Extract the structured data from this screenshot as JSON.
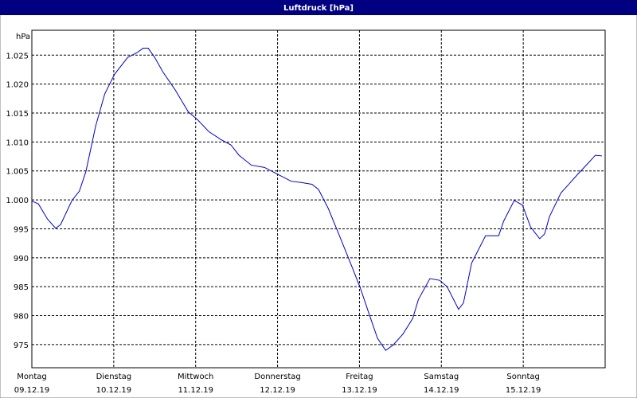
{
  "chart_data": {
    "type": "line",
    "title": "Luftdruck [hPa]",
    "y_unit": "hPa",
    "xticks": [
      {
        "value": 0,
        "label": "Montag"
      },
      {
        "value": 1,
        "label": "Dienstag"
      },
      {
        "value": 2,
        "label": "Mittwoch"
      },
      {
        "value": 3,
        "label": "Donnerstag"
      },
      {
        "value": 4,
        "label": "Freitag"
      },
      {
        "value": 5,
        "label": "Samstag"
      },
      {
        "value": 6,
        "label": "Sonntag"
      }
    ],
    "xtick_dates": [
      "09.12.19",
      "10.12.19",
      "11.12.19",
      "12.12.19",
      "13.12.19",
      "14.12.19",
      "15.12.19"
    ],
    "xlim": [
      0,
      7
    ],
    "ylim": [
      971,
      1029.3
    ],
    "yticks": [
      975,
      980,
      985,
      990,
      995,
      {
        "value": 1000,
        "label": "1.000"
      },
      {
        "value": 1005,
        "label": "1.005"
      },
      {
        "value": 1010,
        "label": "1.010"
      },
      {
        "value": 1015,
        "label": "1.015"
      },
      {
        "value": 1020,
        "label": "1.020"
      },
      {
        "value": 1025,
        "label": "1.025"
      }
    ],
    "grid": true,
    "x": [
      0,
      0.08,
      0.19,
      0.29,
      0.35,
      0.49,
      0.58,
      0.66,
      0.78,
      0.89,
      1.01,
      1.17,
      1.28,
      1.36,
      1.42,
      1.5,
      1.6,
      1.75,
      1.91,
      2.02,
      2.16,
      2.31,
      2.43,
      2.53,
      2.68,
      2.84,
      2.99,
      3.17,
      3.29,
      3.42,
      3.5,
      3.62,
      3.75,
      3.89,
      4.01,
      4.12,
      4.22,
      4.32,
      4.41,
      4.53,
      4.65,
      4.72,
      4.86,
      4.98,
      5.07,
      5.21,
      5.27,
      5.37,
      5.54,
      5.7,
      5.76,
      5.89,
      5.99,
      6.09,
      6.2,
      6.26,
      6.32,
      6.46,
      6.55,
      6.67,
      6.79,
      6.88,
      6.96
    ],
    "series": [
      {
        "color": "#0000c8",
        "values": [
          999.8,
          999.3,
          996.7,
          995.1,
          995.7,
          999.9,
          1001.5,
          1004.9,
          1012.8,
          1018.3,
          1021.7,
          1024.6,
          1025.4,
          1026.2,
          1026.2,
          1024.6,
          1022.1,
          1019,
          1015.2,
          1013.9,
          1011.8,
          1010.4,
          1009.5,
          1007.7,
          1006,
          1005.6,
          1004.5,
          1003.2,
          1003,
          1002.7,
          1001.8,
          998.5,
          994,
          989.1,
          984.8,
          980.2,
          976.1,
          974,
          974.9,
          976.8,
          979.5,
          982.8,
          986.4,
          986.1,
          985,
          981.1,
          982.2,
          989.1,
          993.8,
          993.8,
          996.3,
          999.9,
          999.1,
          995.3,
          993.3,
          994.1,
          997.1,
          1001.2,
          1002.6,
          1004.5,
          1006.3,
          1007.7,
          1007.6
        ]
      }
    ]
  }
}
